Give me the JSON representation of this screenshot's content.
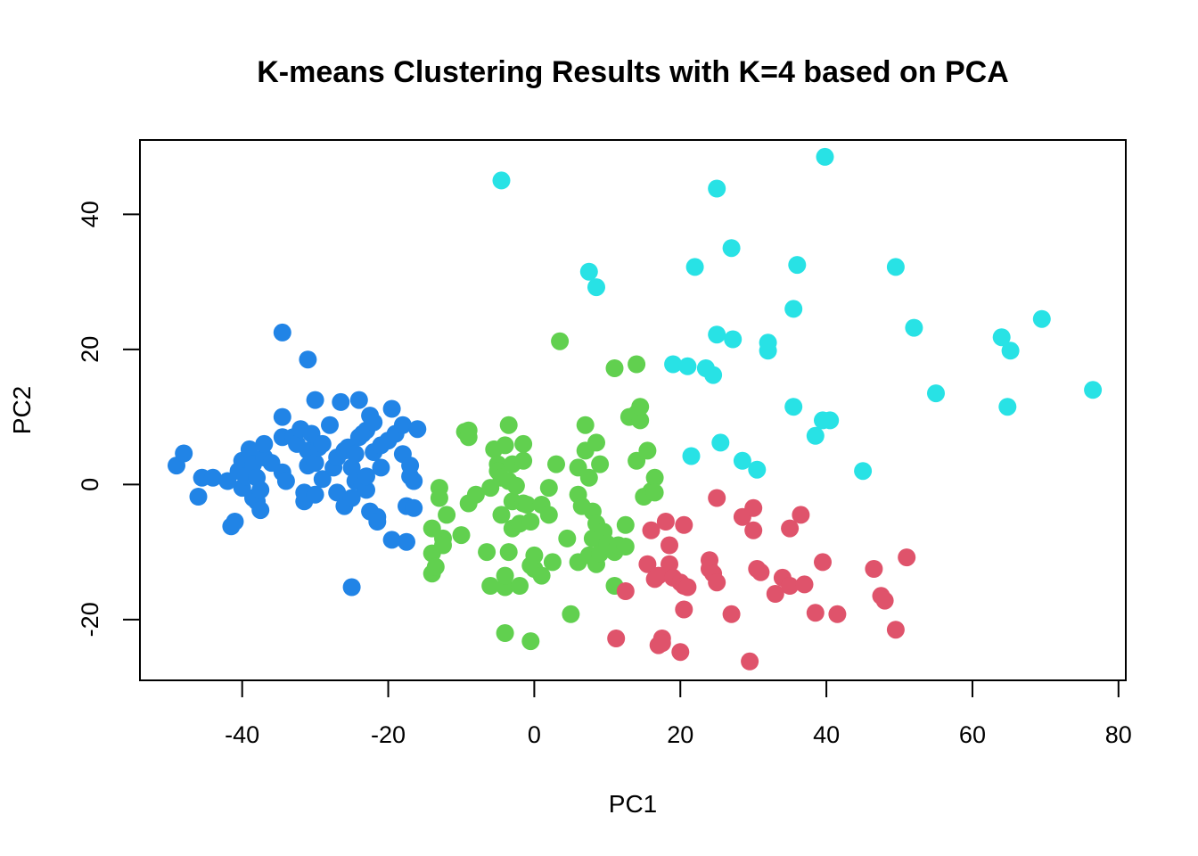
{
  "chart_data": {
    "type": "scatter",
    "title": "K-means Clustering Results with K=4 based on PCA",
    "xlabel": "PC1",
    "ylabel": "PC2",
    "xlim": [
      -54,
      81
    ],
    "ylim": [
      -29,
      51
    ],
    "xticks": [
      -40,
      -20,
      0,
      20,
      40,
      60,
      80
    ],
    "yticks": [
      -20,
      0,
      20,
      40
    ],
    "xtick_labels": [
      "-40",
      "-20",
      "0",
      "20",
      "40",
      "60",
      "80"
    ],
    "ytick_labels": [
      "-20",
      "0",
      "20",
      "40"
    ],
    "grid": false,
    "series": [
      {
        "color": "#2184e6",
        "points": [
          [
            -49,
            2.8
          ],
          [
            -48,
            4.6
          ],
          [
            -46,
            -1.8
          ],
          [
            -45.5,
            1
          ],
          [
            -44,
            1
          ],
          [
            -42,
            0.5
          ],
          [
            -41.5,
            -6.2
          ],
          [
            -41,
            -5.5
          ],
          [
            -40.5,
            2
          ],
          [
            -40,
            -0.5
          ],
          [
            -40,
            3.5
          ],
          [
            -39.5,
            1.2
          ],
          [
            -39,
            5.2
          ],
          [
            -38.5,
            -2
          ],
          [
            -38.5,
            3
          ],
          [
            -38,
            -2.5
          ],
          [
            -38,
            1
          ],
          [
            -37.5,
            -3.8
          ],
          [
            -37.5,
            -0.8
          ],
          [
            -37,
            4
          ],
          [
            -37,
            6
          ],
          [
            -36,
            3.2
          ],
          [
            -34.5,
            1.8
          ],
          [
            -34.5,
            22.5
          ],
          [
            -34.5,
            10
          ],
          [
            -34.5,
            7
          ],
          [
            -34,
            0.5
          ],
          [
            -33,
            7
          ],
          [
            -32.5,
            6
          ],
          [
            -32,
            8.2
          ],
          [
            -31.5,
            -2.5
          ],
          [
            -31.5,
            -1.2
          ],
          [
            -31,
            5
          ],
          [
            -31,
            18.5
          ],
          [
            -31,
            2.8
          ],
          [
            -30.5,
            7.5
          ],
          [
            -30,
            12.5
          ],
          [
            -30,
            3.2
          ],
          [
            -30,
            -1.5
          ],
          [
            -29.5,
            5.5
          ],
          [
            -29,
            0.8
          ],
          [
            -29,
            6
          ],
          [
            -28,
            8.8
          ],
          [
            -27.5,
            2.5
          ],
          [
            -27,
            -1.2
          ],
          [
            -27,
            4
          ],
          [
            -26.5,
            12.2
          ],
          [
            -26,
            5
          ],
          [
            -26,
            -3.2
          ],
          [
            -25.5,
            5.5
          ],
          [
            -25,
            -15.2
          ],
          [
            -25,
            -2
          ],
          [
            -25,
            2.5
          ],
          [
            -24.5,
            4.5
          ],
          [
            -24.5,
            0.5
          ],
          [
            -24,
            7
          ],
          [
            -24,
            12.5
          ],
          [
            -23.5,
            0
          ],
          [
            -23.5,
            7.5
          ],
          [
            -23,
            -0.8
          ],
          [
            -23,
            1.2
          ],
          [
            -23,
            8
          ],
          [
            -22.5,
            -4
          ],
          [
            -22.5,
            10.2
          ],
          [
            -22,
            9.2
          ],
          [
            -22,
            4.8
          ],
          [
            -21.5,
            -4.8
          ],
          [
            -21.5,
            -5.5
          ],
          [
            -21,
            2.5
          ],
          [
            -21,
            5.8
          ],
          [
            -20,
            6.5
          ],
          [
            -19.5,
            11.2
          ],
          [
            -19.5,
            -8.2
          ],
          [
            -19,
            7.5
          ],
          [
            -18,
            8.8
          ],
          [
            -18,
            4.5
          ],
          [
            -17.5,
            -8.5
          ],
          [
            -17.5,
            -3.2
          ],
          [
            -17,
            1.2
          ],
          [
            -17,
            2.8
          ],
          [
            -16.5,
            0.5
          ],
          [
            -16.5,
            -3.5
          ],
          [
            -16,
            8.2
          ]
        ]
      },
      {
        "color": "#28e2e5",
        "points": [
          [
            -4.5,
            45
          ],
          [
            7.5,
            31.5
          ],
          [
            8.5,
            29.2
          ],
          [
            19,
            17.8
          ],
          [
            21,
            17.5
          ],
          [
            21.5,
            4.2
          ],
          [
            22,
            32.2
          ],
          [
            23.5,
            17.2
          ],
          [
            24.5,
            16.2
          ],
          [
            25,
            43.8
          ],
          [
            25,
            22.2
          ],
          [
            25.5,
            6.2
          ],
          [
            27,
            35
          ],
          [
            27.2,
            21.5
          ],
          [
            28.5,
            3.5
          ],
          [
            30.5,
            2.2
          ],
          [
            32,
            21
          ],
          [
            32,
            19.8
          ],
          [
            35.5,
            26
          ],
          [
            35.5,
            11.5
          ],
          [
            36,
            32.5
          ],
          [
            38.5,
            7.2
          ],
          [
            39.5,
            9.5
          ],
          [
            39.8,
            48.5
          ],
          [
            40.5,
            9.5
          ],
          [
            45,
            2
          ],
          [
            49.5,
            32.2
          ],
          [
            52,
            23.2
          ],
          [
            55,
            13.5
          ],
          [
            64,
            21.8
          ],
          [
            64.8,
            11.5
          ],
          [
            65.2,
            19.8
          ],
          [
            69.5,
            24.5
          ],
          [
            76.5,
            14
          ]
        ]
      },
      {
        "color": "#61d04f",
        "points": [
          [
            3.5,
            21.2
          ],
          [
            11,
            17.2
          ],
          [
            14,
            17.8
          ],
          [
            -14,
            -10.2
          ],
          [
            -14,
            -13.2
          ],
          [
            -14,
            -6.5
          ],
          [
            -13.5,
            -12.2
          ],
          [
            -13,
            -0.5
          ],
          [
            -13,
            -2
          ],
          [
            -12.5,
            -8
          ],
          [
            -12.5,
            -9
          ],
          [
            -12,
            -4.5
          ],
          [
            -10,
            -7.5
          ],
          [
            -9.5,
            7.8
          ],
          [
            -9,
            8
          ],
          [
            -9,
            7
          ],
          [
            -9,
            -2.8
          ],
          [
            -8,
            -1.5
          ],
          [
            -6.5,
            -10
          ],
          [
            -6,
            -15
          ],
          [
            -6,
            -0.5
          ],
          [
            -5.5,
            5.2
          ],
          [
            -5,
            3
          ],
          [
            -5,
            2
          ],
          [
            -4.5,
            -4.5
          ],
          [
            -4.5,
            1
          ],
          [
            -4,
            -22
          ],
          [
            -4,
            -15.2
          ],
          [
            -4,
            5.8
          ],
          [
            -4,
            -13.5
          ],
          [
            -3.5,
            8.8
          ],
          [
            -3.5,
            -10
          ],
          [
            -3.5,
            0.5
          ],
          [
            -3,
            3
          ],
          [
            -3,
            -2.5
          ],
          [
            -3,
            -6.5
          ],
          [
            -2.5,
            -0.2
          ],
          [
            -2,
            -15
          ],
          [
            -2,
            -5.8
          ],
          [
            -1.5,
            -2.8
          ],
          [
            -1.5,
            6
          ],
          [
            -1.5,
            3.5
          ],
          [
            -1,
            -3
          ],
          [
            -0.5,
            -23.2
          ],
          [
            -0.5,
            -12
          ],
          [
            -0.5,
            -5.5
          ],
          [
            0,
            -12.5
          ],
          [
            0,
            -10.5
          ],
          [
            1,
            -13.5
          ],
          [
            1,
            -3
          ],
          [
            2,
            -4.5
          ],
          [
            2,
            -0.5
          ],
          [
            2.5,
            -11.5
          ],
          [
            3,
            3
          ],
          [
            4.5,
            -8
          ],
          [
            5,
            -19.2
          ],
          [
            6,
            -11.5
          ],
          [
            6,
            -1.5
          ],
          [
            6,
            2.5
          ],
          [
            6.5,
            -3.2
          ],
          [
            7,
            5
          ],
          [
            7,
            8.8
          ],
          [
            7.5,
            1
          ],
          [
            7.5,
            -10.5
          ],
          [
            8,
            -8
          ],
          [
            8,
            -4
          ],
          [
            8.5,
            6.2
          ],
          [
            8.5,
            -11.8
          ],
          [
            8.5,
            -5.8
          ],
          [
            9,
            3
          ],
          [
            9,
            -10.2
          ],
          [
            9.5,
            -7
          ],
          [
            10,
            -8.8
          ],
          [
            11,
            -15
          ],
          [
            11,
            -10
          ],
          [
            11.5,
            -9
          ],
          [
            12.5,
            -6
          ],
          [
            12.5,
            -9.2
          ],
          [
            13,
            10
          ],
          [
            14,
            3.5
          ],
          [
            14,
            10.5
          ],
          [
            14.5,
            9.5
          ],
          [
            14.5,
            11.5
          ],
          [
            15,
            -1.8
          ],
          [
            15.5,
            5
          ],
          [
            16,
            -1
          ],
          [
            16.5,
            1
          ],
          [
            16.5,
            -1.2
          ]
        ]
      },
      {
        "color": "#df536b",
        "points": [
          [
            11.2,
            -22.8
          ],
          [
            12.5,
            -15.8
          ],
          [
            15.5,
            -11.8
          ],
          [
            16,
            -6.8
          ],
          [
            16.5,
            -14
          ],
          [
            17,
            -13.5
          ],
          [
            17,
            -23.8
          ],
          [
            17.5,
            -22.8
          ],
          [
            17.5,
            -23.5
          ],
          [
            18,
            -5.5
          ],
          [
            18.5,
            -9
          ],
          [
            18.5,
            -11.8
          ],
          [
            19,
            -13.8
          ],
          [
            20,
            -14.5
          ],
          [
            20,
            -24.8
          ],
          [
            20.5,
            -15
          ],
          [
            20.5,
            -18.5
          ],
          [
            20.5,
            -6
          ],
          [
            21,
            -15.2
          ],
          [
            24,
            -11.2
          ],
          [
            24,
            -12.5
          ],
          [
            24.5,
            -13.2
          ],
          [
            25,
            -2
          ],
          [
            25,
            -14.5
          ],
          [
            27,
            -19.2
          ],
          [
            28.5,
            -4.8
          ],
          [
            29.5,
            -26.2
          ],
          [
            30,
            -6.8
          ],
          [
            30,
            -3.5
          ],
          [
            30.5,
            -12.5
          ],
          [
            31,
            -13
          ],
          [
            33,
            -16.2
          ],
          [
            34,
            -13.8
          ],
          [
            35,
            -15
          ],
          [
            35,
            -6.5
          ],
          [
            36.5,
            -4.5
          ],
          [
            37,
            -14.8
          ],
          [
            38.5,
            -19
          ],
          [
            39.5,
            -11.5
          ],
          [
            41.5,
            -19.2
          ],
          [
            46.5,
            -12.5
          ],
          [
            47.5,
            -16.5
          ],
          [
            48,
            -17.2
          ],
          [
            49.5,
            -21.5
          ],
          [
            51,
            -10.8
          ]
        ]
      }
    ]
  }
}
